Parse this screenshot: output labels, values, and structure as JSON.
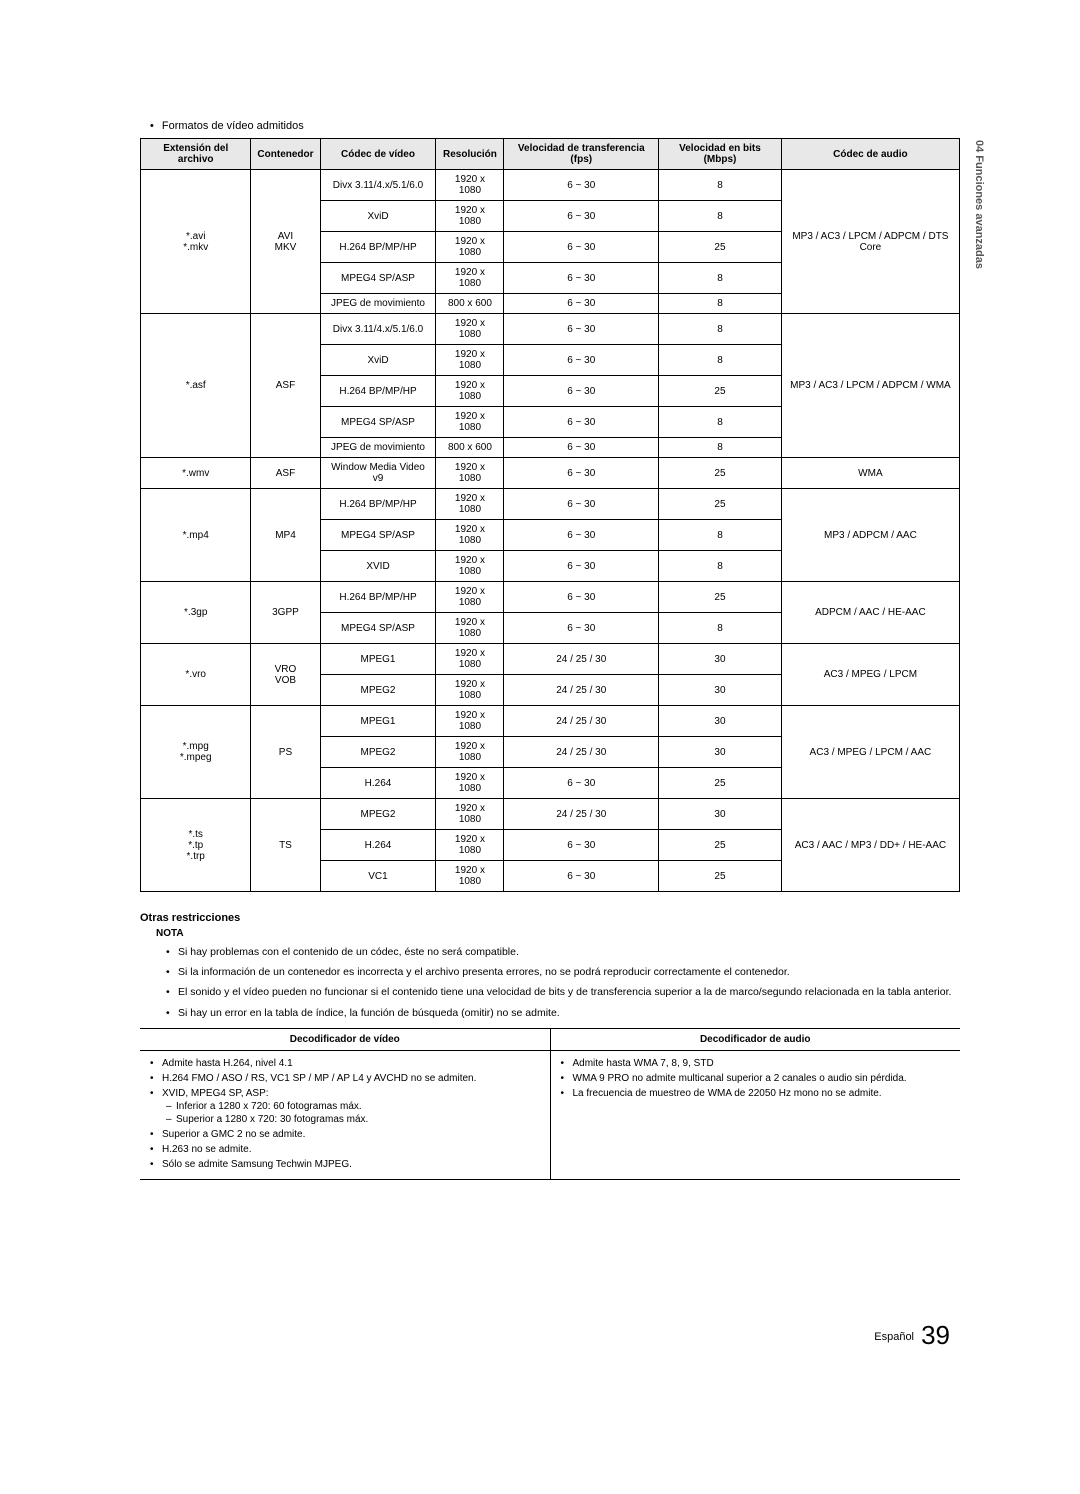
{
  "side_label": "04  Funciones avanzadas",
  "section_label": "Formatos de vídeo admitidos",
  "table": {
    "headers": {
      "ext": "Extensión del archivo",
      "container": "Contenedor",
      "vcodec": "Códec de vídeo",
      "res": "Resolución",
      "fps": "Velocidad de transferencia (fps)",
      "mbps": "Velocidad en bits (Mbps)",
      "acodec": "Códec de audio"
    },
    "groups": [
      {
        "ext": "*.avi\n*.mkv",
        "container": "AVI\nMKV",
        "acodec": "MP3 / AC3 / LPCM / ADPCM / DTS Core",
        "rows": [
          {
            "vcodec": "Divx 3.11/4.x/5.1/6.0",
            "res": "1920 x 1080",
            "fps": "6 ~ 30",
            "mbps": "8"
          },
          {
            "vcodec": "XviD",
            "res": "1920 x 1080",
            "fps": "6 ~ 30",
            "mbps": "8"
          },
          {
            "vcodec": "H.264 BP/MP/HP",
            "res": "1920 x 1080",
            "fps": "6 ~ 30",
            "mbps": "25"
          },
          {
            "vcodec": "MPEG4 SP/ASP",
            "res": "1920 x 1080",
            "fps": "6 ~ 30",
            "mbps": "8"
          },
          {
            "vcodec": "JPEG de movimiento",
            "res": "800 x 600",
            "fps": "6 ~ 30",
            "mbps": "8"
          }
        ]
      },
      {
        "ext": "*.asf",
        "container": "ASF",
        "acodec": "MP3 / AC3 / LPCM / ADPCM / WMA",
        "rows": [
          {
            "vcodec": "Divx 3.11/4.x/5.1/6.0",
            "res": "1920 x 1080",
            "fps": "6 ~ 30",
            "mbps": "8"
          },
          {
            "vcodec": "XviD",
            "res": "1920 x 1080",
            "fps": "6 ~ 30",
            "mbps": "8"
          },
          {
            "vcodec": "H.264 BP/MP/HP",
            "res": "1920 x 1080",
            "fps": "6 ~ 30",
            "mbps": "25"
          },
          {
            "vcodec": "MPEG4 SP/ASP",
            "res": "1920 x 1080",
            "fps": "6 ~ 30",
            "mbps": "8"
          },
          {
            "vcodec": "JPEG de movimiento",
            "res": "800 x 600",
            "fps": "6 ~ 30",
            "mbps": "8"
          }
        ]
      },
      {
        "ext": "*.wmv",
        "container": "ASF",
        "acodec": "WMA",
        "rows": [
          {
            "vcodec": "Window Media Video v9",
            "res": "1920 x 1080",
            "fps": "6 ~ 30",
            "mbps": "25"
          }
        ]
      },
      {
        "ext": "*.mp4",
        "container": "MP4",
        "acodec": "MP3 / ADPCM / AAC",
        "rows": [
          {
            "vcodec": "H.264 BP/MP/HP",
            "res": "1920 x 1080",
            "fps": "6 ~ 30",
            "mbps": "25"
          },
          {
            "vcodec": "MPEG4 SP/ASP",
            "res": "1920 x 1080",
            "fps": "6 ~ 30",
            "mbps": "8"
          },
          {
            "vcodec": "XVID",
            "res": "1920 x 1080",
            "fps": "6 ~ 30",
            "mbps": "8"
          }
        ]
      },
      {
        "ext": "*.3gp",
        "container": "3GPP",
        "acodec": "ADPCM / AAC / HE-AAC",
        "rows": [
          {
            "vcodec": "H.264 BP/MP/HP",
            "res": "1920 x 1080",
            "fps": "6 ~ 30",
            "mbps": "25"
          },
          {
            "vcodec": "MPEG4 SP/ASP",
            "res": "1920 x 1080",
            "fps": "6 ~ 30",
            "mbps": "8"
          }
        ]
      },
      {
        "ext": "*.vro",
        "container": "VRO\nVOB",
        "acodec": "AC3 / MPEG / LPCM",
        "rows": [
          {
            "vcodec": "MPEG1",
            "res": "1920 x 1080",
            "fps": "24 / 25 / 30",
            "mbps": "30"
          },
          {
            "vcodec": "MPEG2",
            "res": "1920 x 1080",
            "fps": "24 / 25 / 30",
            "mbps": "30"
          }
        ]
      },
      {
        "ext": "*.mpg\n*.mpeg",
        "container": "PS",
        "acodec": "AC3 / MPEG / LPCM / AAC",
        "rows": [
          {
            "vcodec": "MPEG1",
            "res": "1920 x 1080",
            "fps": "24 / 25 / 30",
            "mbps": "30"
          },
          {
            "vcodec": "MPEG2",
            "res": "1920 x 1080",
            "fps": "24 / 25 / 30",
            "mbps": "30"
          },
          {
            "vcodec": "H.264",
            "res": "1920 x 1080",
            "fps": "6 ~ 30",
            "mbps": "25"
          }
        ]
      },
      {
        "ext": "*.ts\n*.tp\n*.trp",
        "container": "TS",
        "acodec": "AC3 / AAC / MP3 / DD+ / HE-AAC",
        "rows": [
          {
            "vcodec": "MPEG2",
            "res": "1920 x 1080",
            "fps": "24 / 25 / 30",
            "mbps": "30"
          },
          {
            "vcodec": "H.264",
            "res": "1920 x 1080",
            "fps": "6 ~ 30",
            "mbps": "25"
          },
          {
            "vcodec": "VC1",
            "res": "1920 x 1080",
            "fps": "6 ~ 30",
            "mbps": "25"
          }
        ]
      }
    ]
  },
  "restrictions": {
    "title": "Otras restricciones",
    "nota": "NOTA",
    "items": [
      "Si hay problemas con el contenido de un códec, éste no será compatible.",
      "Si la información de un contenedor es incorrecta y el archivo presenta errores, no se podrá reproducir correctamente el contenedor.",
      "El sonido y el vídeo pueden no funcionar si el contenido tiene una velocidad de bits y de transferencia superior a la de marco/segundo relacionada en la tabla anterior.",
      "Si hay un error en la tabla de índice, la función de búsqueda (omitir) no se admite."
    ]
  },
  "decoders": {
    "video_h": "Decodificador de vídeo",
    "audio_h": "Decodificador de audio",
    "video": {
      "i0": "Admite hasta H.264, nivel 4.1",
      "i1": "H.264 FMO / ASO / RS, VC1 SP / MP / AP L4 y AVCHD no se admiten.",
      "i2": "XVID, MPEG4 SP, ASP:",
      "i2a": "Inferior a 1280 x 720: 60 fotogramas máx.",
      "i2b": "Superior a 1280 x 720: 30 fotogramas máx.",
      "i3": "Superior a GMC 2 no se admite.",
      "i4": "H.263 no se admite.",
      "i5": "Sólo se admite Samsung Techwin MJPEG."
    },
    "audio": {
      "i0": "Admite hasta WMA 7, 8, 9, STD",
      "i1": "WMA 9 PRO no admite multicanal superior a 2 canales o audio sin pérdida.",
      "i2": "La frecuencia de muestreo de WMA de 22050 Hz mono no se admite."
    }
  },
  "footer": {
    "lang": "Español",
    "page": "39"
  }
}
